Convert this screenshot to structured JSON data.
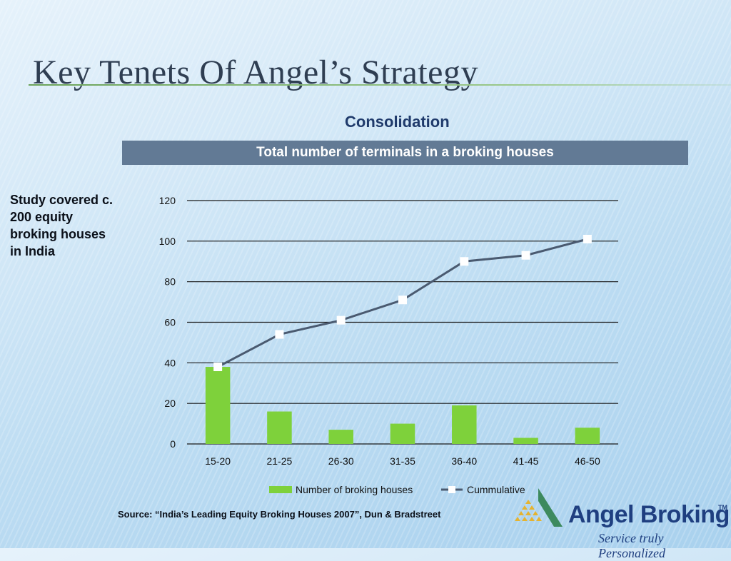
{
  "slide": {
    "title": "Key Tenets Of Angel’s Strategy",
    "subtitle": "Consolidation",
    "banner": "Total number of terminals in a broking houses",
    "note": "Study covered c. 200 equity broking houses in India",
    "source": "Source: “India’s Leading Equity Broking Houses 2007”, Dun & Bradstreet"
  },
  "logo": {
    "name": "Angel Broking",
    "tm": "TM",
    "tagline": "Service truly Personalized"
  },
  "colors": {
    "bar": "#7ed13b",
    "line": "#4a5a70",
    "marker": "#ffffff",
    "banner": "#627a95",
    "title": "#2f3e52"
  },
  "chart_data": {
    "type": "bar",
    "title": "Total number of terminals in a broking houses",
    "categories": [
      "15-20",
      "21-25",
      "26-30",
      "31-35",
      "36-40",
      "41-45",
      "46-50"
    ],
    "ylim": [
      0,
      120
    ],
    "yticks": [
      0,
      20,
      40,
      60,
      80,
      100,
      120
    ],
    "grid": true,
    "legend_position": "bottom",
    "series": [
      {
        "name": "Number of broking houses",
        "type": "bar",
        "values": [
          38,
          16,
          7,
          10,
          19,
          3,
          8
        ]
      },
      {
        "name": "Cummulative",
        "type": "line",
        "values": [
          38,
          54,
          61,
          71,
          90,
          93,
          101
        ]
      }
    ]
  }
}
